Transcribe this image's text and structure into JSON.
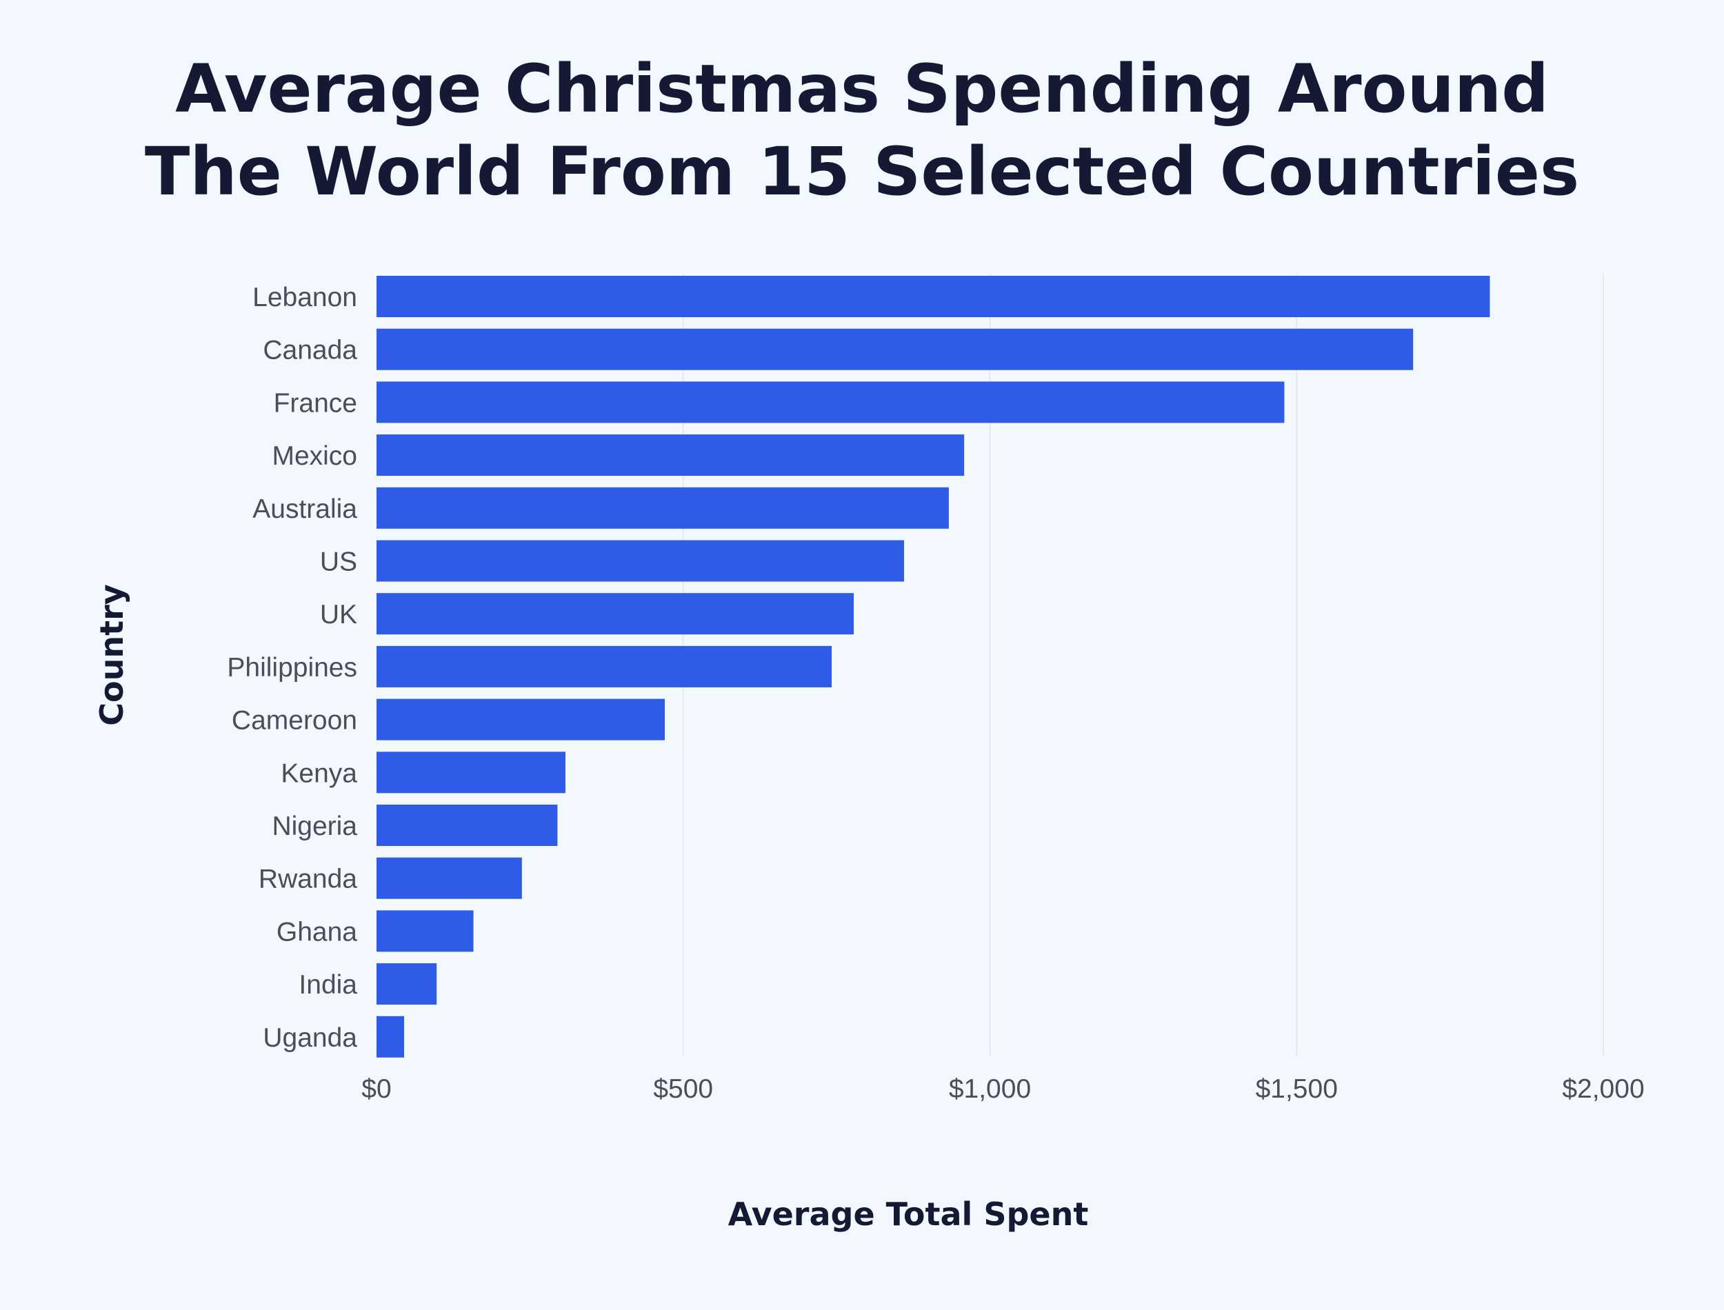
{
  "chart_data": {
    "type": "bar",
    "orientation": "horizontal",
    "title": "Average Christmas Spending Around The World From 15 Selected Countries",
    "title_lines": [
      "Average Christmas Spending Around",
      "The World From 15 Selected Countries"
    ],
    "xlabel": "Average Total Spent",
    "ylabel": "Country",
    "categories": [
      "Lebanon",
      "Canada",
      "France",
      "Mexico",
      "Australia",
      "US",
      "UK",
      "Philippines",
      "Cameroon",
      "Kenya",
      "Nigeria",
      "Rwanda",
      "Ghana",
      "India",
      "Uganda"
    ],
    "values": [
      1815,
      1690,
      1480,
      958,
      933,
      860,
      778,
      742,
      470,
      308,
      295,
      237,
      158,
      98,
      45
    ],
    "xlim": [
      0,
      2000
    ],
    "x_ticks": [
      0,
      500,
      1000,
      1500,
      2000
    ],
    "x_tick_labels": [
      "$0",
      "$500",
      "$1,000",
      "$1,500",
      "$2,000"
    ],
    "grid": "vertical",
    "legend": "none",
    "bar_color": "#2e5ce6",
    "background_color": "#f3f8fe",
    "text_color": "#141a33"
  }
}
